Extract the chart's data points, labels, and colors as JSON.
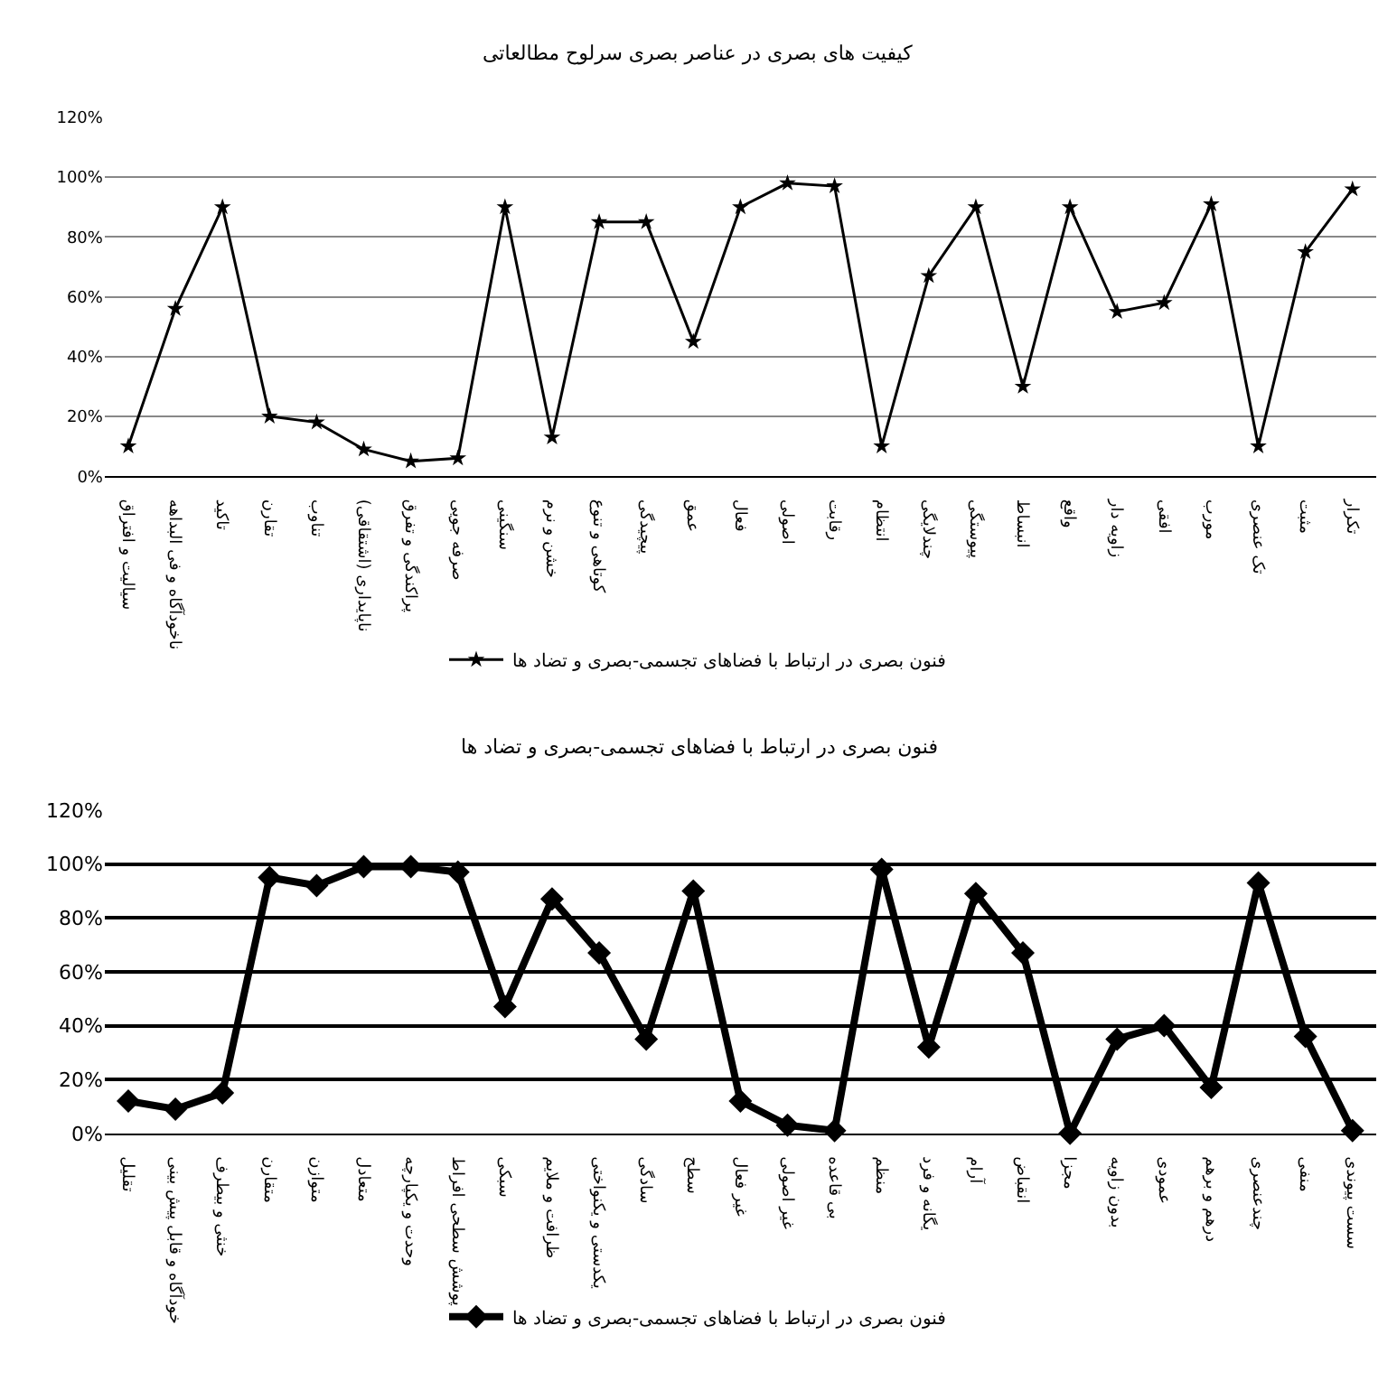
{
  "chart_data": [
    {
      "type": "line",
      "title": "کیفیت های بصری در عناصر بصری سرلوح مطالعاتی",
      "categories": [
        "سیالیت و افتراق",
        "ناخودآگاه و فی البداهه",
        "تاکید",
        "تقارن",
        "تناوب",
        "ناپایداری (اشتقاقی)",
        "پراکندگی و تفرق",
        "صرفه جویی",
        "سنگینی",
        "خشن و نرم",
        "کوتاهی و تنوع",
        "پیچیدگی",
        "عمق",
        "فعال",
        "اصولی",
        "رقابت",
        "انتظام",
        "چندلایگی",
        "پیوستگی",
        "انبساط",
        "واقع",
        "زاویه دار",
        "افقی",
        "مورب",
        "تک عنصری",
        "مثبت",
        "تکرار"
      ],
      "series": [
        {
          "name": "فنون بصری در ارتباط با فضاهای تجسمی-بصری و تضاد ها",
          "color": "#000000",
          "values": [
            10,
            56,
            90,
            20,
            18,
            9,
            5,
            6,
            90,
            13,
            85,
            85,
            45,
            90,
            98,
            97,
            10,
            67,
            90,
            30,
            90,
            55,
            58,
            91,
            10,
            75,
            96
          ]
        }
      ],
      "ylim": [
        0,
        120
      ],
      "yticks": [
        {
          "value": 0,
          "label": "0%"
        },
        {
          "value": 20,
          "label": "20%"
        },
        {
          "value": 40,
          "label": "40%"
        },
        {
          "value": 60,
          "label": "60%"
        },
        {
          "value": 80,
          "label": "80%"
        },
        {
          "value": 100,
          "label": "100%"
        },
        {
          "value": 120,
          "label": "120%"
        }
      ],
      "grid": "y",
      "legend": "bottom",
      "marker": "star",
      "line_style": "solid"
    },
    {
      "type": "line",
      "title": "فنون بصری در ارتباط با فضاهای تجسمی-بصری و تضاد ها",
      "categories": [
        "تقلیل",
        "خودآگاه و قابل پیش بینی",
        "خنثی و بیطرف",
        "متقارن",
        "متوازن",
        "متعادل",
        "وحدت و یکپارچه",
        "پوشش سطحی افراط",
        "سبکی",
        "ظرافت و ملایم",
        "یکدستی و یکنواختی",
        "سادگی",
        "سطح",
        "غیر فعال",
        "غیر اصولی",
        "بی قاعده",
        "منظم",
        "یگانه و فرد",
        "آرام",
        "انقباض",
        "مجزا",
        "بدون زاویه",
        "عمودی",
        "درهم و برهم",
        "چندعنصری",
        "منفی",
        "سست پیوندی"
      ],
      "series": [
        {
          "name": "فنون بصری در ارتباط با فضاهای تجسمی-بصری و تضاد ها",
          "color": "#000000",
          "values": [
            12,
            9,
            15,
            95,
            92,
            99,
            99,
            97,
            47,
            87,
            67,
            35,
            90,
            12,
            3,
            1,
            98,
            32,
            89,
            67,
            0,
            35,
            40,
            17,
            93,
            36,
            1
          ]
        }
      ],
      "ylim": [
        0,
        120
      ],
      "yticks": [
        {
          "value": 0,
          "label": "0%"
        },
        {
          "value": 20,
          "label": "20%"
        },
        {
          "value": 40,
          "label": "40%"
        },
        {
          "value": 60,
          "label": "60%"
        },
        {
          "value": 80,
          "label": "80%"
        },
        {
          "value": 100,
          "label": "100%"
        },
        {
          "value": 120,
          "label": "120%"
        }
      ],
      "grid": "y",
      "legend": "bottom",
      "marker": "diamond",
      "line_style": "solid"
    }
  ]
}
